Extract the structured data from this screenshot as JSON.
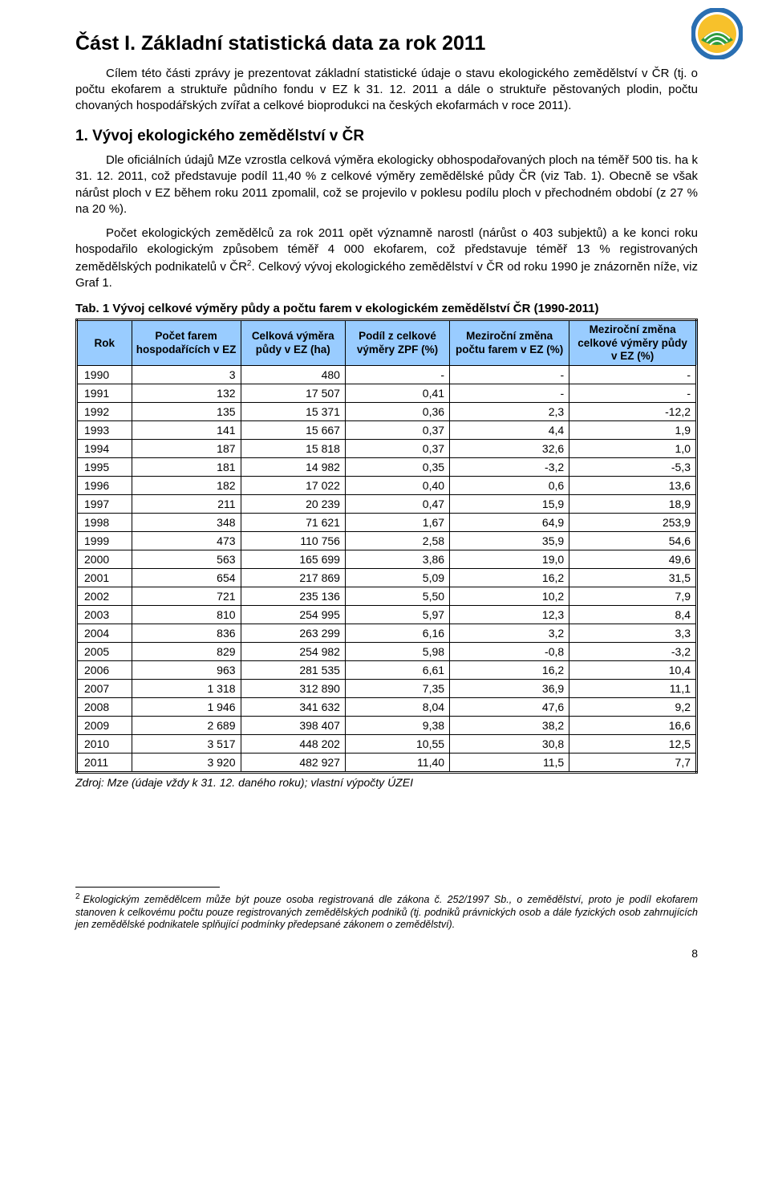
{
  "logo": {
    "outer_ring_color": "#2a6fb2",
    "inner_circle_color": "#f7c12b",
    "field_color": "#2e9b3f"
  },
  "part_title": "Část I. Základní statistická data za rok 2011",
  "p1": "Cílem této části zprávy je prezentovat základní statistické údaje o stavu ekologického zemědělství v ČR (tj. o počtu ekofarem a struktuře půdního fondu v EZ k 31. 12. 2011 a dále o struktuře pěstovaných plodin, počtu chovaných hospodářských zvířat a celkové bioprodukci na českých ekofarmách v roce 2011).",
  "section_title": "1. Vývoj ekologického zemědělství v ČR",
  "p2": "Dle oficiálních údajů MZe vzrostla celková výměra ekologicky obhospodařovaných ploch na téměř 500 tis. ha k 31. 12. 2011, což představuje podíl 11,40 % z celkové výměry zemědělské půdy ČR (viz Tab. 1). Obecně se však nárůst ploch v EZ během roku 2011 zpomalil, což se projevilo v poklesu podílu ploch v přechodném období (z 27 % na 20 %).",
  "p3_a": "Počet ekologických zemědělců za rok 2011 opět významně narostl (nárůst o 403 subjektů) a ke konci roku hospodařilo ekologickým způsobem téměř 4 000 ekofarem, což představuje téměř 13 % registrovaných zemědělských podnikatelů v ČR",
  "p3_sup": "2",
  "p3_b": ". Celkový vývoj ekologického zemědělství v ČR od roku 1990 je znázorněn níže, viz Graf 1.",
  "table_caption": "Tab. 1 Vývoj celkové výměry půdy a počtu farem v ekologickém zemědělství ČR (1990-2011)",
  "table": {
    "header_bg": "#99ccff",
    "columns": [
      "Rok",
      "Počet farem hospodařících v EZ",
      "Celková výměra půdy v EZ (ha)",
      "Podíl z celkové výměry ZPF (%)",
      "Meziroční změna počtu farem v EZ (%)",
      "Meziroční změna celkové výměry půdy v EZ (%)"
    ],
    "rows": [
      [
        "1990",
        "3",
        "480",
        "-",
        "-",
        "-"
      ],
      [
        "1991",
        "132",
        "17 507",
        "0,41",
        "-",
        "-"
      ],
      [
        "1992",
        "135",
        "15 371",
        "0,36",
        "2,3",
        "-12,2"
      ],
      [
        "1993",
        "141",
        "15 667",
        "0,37",
        "4,4",
        "1,9"
      ],
      [
        "1994",
        "187",
        "15 818",
        "0,37",
        "32,6",
        "1,0"
      ],
      [
        "1995",
        "181",
        "14 982",
        "0,35",
        "-3,2",
        "-5,3"
      ],
      [
        "1996",
        "182",
        "17 022",
        "0,40",
        "0,6",
        "13,6"
      ],
      [
        "1997",
        "211",
        "20 239",
        "0,47",
        "15,9",
        "18,9"
      ],
      [
        "1998",
        "348",
        "71 621",
        "1,67",
        "64,9",
        "253,9"
      ],
      [
        "1999",
        "473",
        "110 756",
        "2,58",
        "35,9",
        "54,6"
      ],
      [
        "2000",
        "563",
        "165 699",
        "3,86",
        "19,0",
        "49,6"
      ],
      [
        "2001",
        "654",
        "217 869",
        "5,09",
        "16,2",
        "31,5"
      ],
      [
        "2002",
        "721",
        "235 136",
        "5,50",
        "10,2",
        "7,9"
      ],
      [
        "2003",
        "810",
        "254 995",
        "5,97",
        "12,3",
        "8,4"
      ],
      [
        "2004",
        "836",
        "263 299",
        "6,16",
        "3,2",
        "3,3"
      ],
      [
        "2005",
        "829",
        "254 982",
        "5,98",
        "-0,8",
        "-3,2"
      ],
      [
        "2006",
        "963",
        "281 535",
        "6,61",
        "16,2",
        "10,4"
      ],
      [
        "2007",
        "1 318",
        "312 890",
        "7,35",
        "36,9",
        "11,1"
      ],
      [
        "2008",
        "1 946",
        "341 632",
        "8,04",
        "47,6",
        "9,2"
      ],
      [
        "2009",
        "2 689",
        "398 407",
        "9,38",
        "38,2",
        "16,6"
      ],
      [
        "2010",
        "3 517",
        "448 202",
        "10,55",
        "30,8",
        "12,5"
      ],
      [
        "2011",
        "3 920",
        "482 927",
        "11,40",
        "11,5",
        "7,7"
      ]
    ],
    "col_widths": [
      "60px",
      "130px",
      "130px",
      "130px",
      "150px",
      "160px"
    ]
  },
  "source": "Zdroj: Mze (údaje vždy k 31. 12. daného roku); vlastní výpočty ÚZEI",
  "footnote_mark": "2",
  "footnote": "Ekologickým zemědělcem může být pouze osoba registrovaná dle zákona č. 252/1997 Sb., o zemědělství, proto je podíl ekofarem stanoven k celkovému počtu pouze registrovaných zemědělských podniků (tj. podniků právnických osob a dále fyzických osob zahrnujících jen zemědělské podnikatele splňující podmínky předepsané zákonem o zemědělství).",
  "page_number": "8"
}
